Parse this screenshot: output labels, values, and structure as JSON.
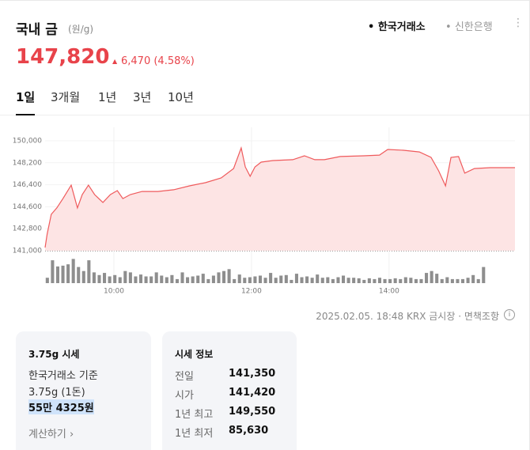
{
  "header": {
    "title": "국내 금",
    "unit": "(원/g)",
    "sources": [
      "한국거래소",
      "신한은행"
    ]
  },
  "price": {
    "value": "147,820",
    "change": "6,470",
    "change_pct": "(4.58%)"
  },
  "tabs": [
    "1일",
    "3개월",
    "1년",
    "3년",
    "10년"
  ],
  "chart_data": [
    {
      "type": "area",
      "color": "#ef5a5c",
      "fill": "#fde4e4",
      "grid": true,
      "x": [
        9.0,
        9.03,
        9.09,
        9.17,
        9.26,
        9.38,
        9.47,
        9.54,
        9.63,
        9.72,
        9.84,
        9.95,
        10.05,
        10.13,
        10.24,
        10.41,
        10.64,
        10.87,
        11.1,
        11.33,
        11.56,
        11.74,
        11.85,
        11.91,
        11.98,
        12.05,
        12.14,
        12.31,
        12.6,
        12.77,
        12.92,
        13.06,
        13.29,
        13.63,
        13.86,
        13.98,
        14.21,
        14.44,
        14.61,
        14.72,
        14.82,
        14.9,
        15.01,
        15.1,
        15.24,
        15.47,
        15.83
      ],
      "values": [
        141260,
        142360,
        143980,
        144500,
        145270,
        146370,
        144500,
        145600,
        146370,
        145600,
        144950,
        145600,
        145920,
        145270,
        145600,
        145850,
        145850,
        145990,
        146310,
        146570,
        146960,
        147730,
        149420,
        147860,
        147090,
        147860,
        148250,
        148380,
        148450,
        148770,
        148450,
        148450,
        148710,
        148770,
        148830,
        149290,
        149220,
        149090,
        148640,
        147540,
        146310,
        148640,
        148710,
        147350,
        147730,
        147800,
        147800
      ],
      "xlim": [
        9,
        15.83
      ],
      "xticks": [
        {
          "value": 10,
          "label": "10:00"
        },
        {
          "value": 12,
          "label": "12:00"
        },
        {
          "value": 14,
          "label": "14:00"
        }
      ],
      "ylim": [
        141000,
        150000
      ],
      "yticks": [
        {
          "value": 141000,
          "label": "141,000"
        },
        {
          "value": 142800,
          "label": "142,800"
        },
        {
          "value": 144600,
          "label": "144,600"
        },
        {
          "value": 146400,
          "label": "146,400"
        },
        {
          "value": 148200,
          "label": "148,200"
        },
        {
          "value": 150000,
          "label": "150,000"
        }
      ]
    },
    {
      "type": "bar",
      "color": "#8e8e8e",
      "ylim": [
        0,
        100
      ],
      "categories": [
        null,
        null,
        null,
        null,
        null,
        null,
        null,
        null,
        null,
        null,
        null,
        null,
        null,
        null,
        null,
        null,
        null,
        null,
        null,
        null,
        null,
        null,
        null,
        null,
        null,
        null,
        null,
        null,
        null,
        null,
        null,
        null,
        null,
        null,
        null,
        null,
        null,
        null,
        null,
        null,
        null,
        null,
        null,
        null,
        null,
        null,
        null,
        null,
        null,
        null,
        null,
        null,
        null,
        null,
        null,
        null,
        null,
        null,
        null,
        null,
        null,
        null,
        null,
        null,
        null,
        null,
        null,
        null,
        null,
        null,
        null,
        null,
        null,
        null,
        null,
        null,
        null,
        null,
        null,
        null,
        null,
        null,
        null,
        null,
        null
      ],
      "values": [
        20,
        85,
        62,
        65,
        70,
        90,
        60,
        45,
        85,
        40,
        30,
        38,
        25,
        30,
        22,
        45,
        40,
        25,
        32,
        25,
        25,
        40,
        28,
        22,
        30,
        15,
        40,
        22,
        25,
        28,
        35,
        15,
        28,
        40,
        45,
        52,
        15,
        32,
        20,
        22,
        25,
        28,
        20,
        38,
        20,
        28,
        30,
        12,
        35,
        22,
        25,
        20,
        32,
        20,
        22,
        15,
        22,
        28,
        20,
        20,
        18,
        12,
        18,
        15,
        20,
        15,
        15,
        18,
        15,
        22,
        20,
        15,
        15,
        38,
        45,
        35,
        15,
        22,
        15,
        15,
        15,
        20,
        30,
        15,
        60
      ]
    }
  ],
  "footer": {
    "timestamp": "2025.02.05. 18:48 KRX 금시장",
    "disclaimer": "면책조항"
  },
  "cards": [
    {
      "title": "3.75g 시세",
      "lines": [
        "한국거래소 기준",
        "3.75g (1돈)"
      ],
      "amount": "55만 4325원",
      "link": "계산하기"
    },
    {
      "title": "시세 정보",
      "rows": [
        [
          "전일",
          "141,350"
        ],
        [
          "시가",
          "141,420"
        ],
        [
          "1년 최고",
          "149,550"
        ],
        [
          "1년 최저",
          "85,630"
        ]
      ]
    }
  ]
}
